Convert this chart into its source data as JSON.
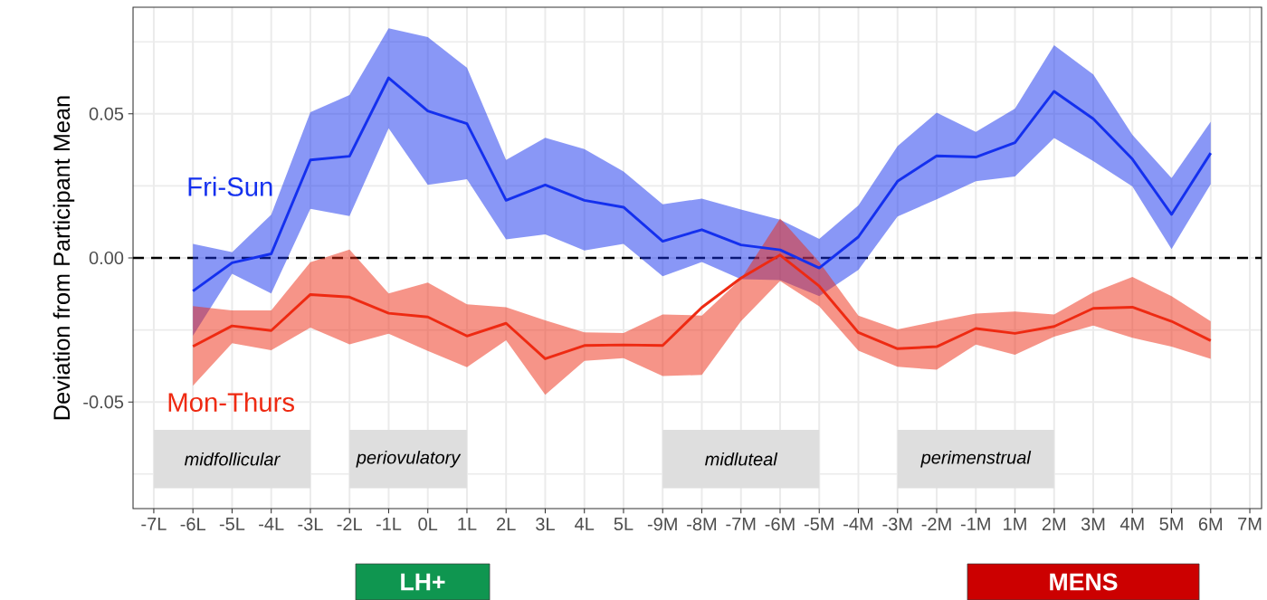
{
  "chart_data": {
    "type": "line",
    "ylabel": "Deviation from Participant Mean",
    "categories": [
      "-7L",
      "-6L",
      "-5L",
      "-4L",
      "-3L",
      "-2L",
      "-1L",
      "0L",
      "1L",
      "2L",
      "3L",
      "4L",
      "5L",
      "-9M",
      "-8M",
      "-7M",
      "-6M",
      "-5M",
      "-4M",
      "-3M",
      "-2M",
      "-1M",
      "1M",
      "2M",
      "3M",
      "4M",
      "5M",
      "6M",
      "7M"
    ],
    "series": [
      {
        "name": "Fri-Sun",
        "color": "#1430ee",
        "values": [
          null,
          -0.0115,
          -0.0017,
          0.0014,
          0.034,
          0.0353,
          0.0625,
          0.051,
          0.0466,
          0.02,
          0.0253,
          0.02,
          0.0176,
          0.0058,
          0.0098,
          0.0045,
          0.0028,
          -0.0035,
          0.0073,
          0.0266,
          0.0354,
          0.035,
          0.04,
          0.0578,
          0.0483,
          0.0343,
          0.0151,
          0.0364,
          null
        ],
        "lower": [
          null,
          -0.027,
          -0.0055,
          -0.0123,
          0.017,
          0.0145,
          0.045,
          0.0254,
          0.0273,
          0.0064,
          0.0082,
          0.0026,
          0.0049,
          -0.0064,
          -0.0014,
          -0.0074,
          -0.0077,
          -0.0133,
          -0.0042,
          0.0144,
          0.0203,
          0.0266,
          0.0283,
          0.0416,
          0.0336,
          0.0248,
          0.0031,
          0.0256,
          null
        ],
        "upper": [
          null,
          0.0049,
          0.002,
          0.015,
          0.0506,
          0.0565,
          0.0797,
          0.0766,
          0.066,
          0.034,
          0.0417,
          0.0378,
          0.03,
          0.0186,
          0.0206,
          0.0168,
          0.0133,
          0.0066,
          0.0182,
          0.0388,
          0.0504,
          0.0437,
          0.0518,
          0.0738,
          0.0637,
          0.0427,
          0.0277,
          0.0473,
          null
        ]
      },
      {
        "name": "Mon-Thurs",
        "color": "#ee2a12",
        "values": [
          null,
          -0.0307,
          -0.0236,
          -0.0252,
          -0.0127,
          -0.0136,
          -0.0192,
          -0.0205,
          -0.0271,
          -0.0227,
          -0.035,
          -0.0304,
          -0.0302,
          -0.0304,
          -0.0172,
          -0.007,
          0.001,
          -0.0098,
          -0.0259,
          -0.0315,
          -0.0308,
          -0.0245,
          -0.0262,
          -0.0238,
          -0.0175,
          -0.0171,
          -0.022,
          -0.0287,
          null
        ],
        "lower": [
          null,
          -0.0444,
          -0.0296,
          -0.032,
          -0.0242,
          -0.03,
          -0.0263,
          -0.0323,
          -0.0379,
          -0.0286,
          -0.0475,
          -0.0357,
          -0.0348,
          -0.041,
          -0.0406,
          -0.022,
          -0.008,
          -0.0168,
          -0.0322,
          -0.0378,
          -0.0388,
          -0.0301,
          -0.0336,
          -0.0273,
          -0.0235,
          -0.0277,
          -0.0308,
          -0.035,
          null
        ],
        "upper": [
          null,
          -0.0167,
          -0.0182,
          -0.0182,
          -0.0015,
          0.0029,
          -0.0123,
          -0.0086,
          -0.0161,
          -0.0171,
          -0.0217,
          -0.0258,
          -0.0261,
          -0.0196,
          -0.02,
          -0.0073,
          0.0137,
          -0.0014,
          -0.02,
          -0.0248,
          -0.022,
          -0.0193,
          -0.0186,
          -0.0196,
          -0.0119,
          -0.0066,
          -0.0133,
          -0.022,
          null
        ]
      }
    ],
    "ylim": [
      -0.087,
      0.087
    ],
    "yticks": [
      -0.05,
      {
        "value": 0,
        "label": "0.00"
      },
      0.05,
      {
        "value": -0.075,
        "label": null
      },
      {
        "value": -0.025,
        "label": null
      },
      {
        "value": 0.025,
        "label": null
      },
      {
        "value": 0.075,
        "label": null
      }
    ],
    "grid": true,
    "legend": false,
    "ref_lines": [
      {
        "axis": "y",
        "value": 0,
        "color": "#000000",
        "line_style": "dashed"
      }
    ],
    "bands": [
      {
        "axis": "x",
        "from": "-7L",
        "to": "-3L",
        "label": "midfollicular",
        "color": "#dedede"
      },
      {
        "axis": "x",
        "from": "-2L",
        "to": "1L",
        "label": "periovulatory",
        "color": "#dedede"
      },
      {
        "axis": "x",
        "from": "-9M",
        "to": "-5M",
        "label": "midluteal",
        "color": "#dedede"
      },
      {
        "axis": "x",
        "from": "-3M",
        "to": "2M",
        "label": "perimenstrual",
        "color": "#dedede"
      }
    ],
    "annotations": [
      "LH+",
      "MENS"
    ]
  }
}
